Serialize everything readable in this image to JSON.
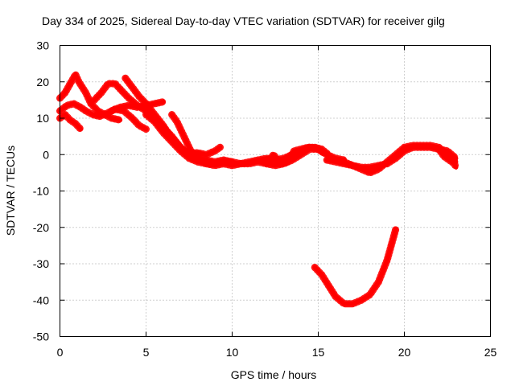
{
  "chart_data": {
    "type": "scatter",
    "title": "Day 334 of 2025, Sidereal Day-to-day VTEC variation (SDTVAR) for receiver gilg",
    "xlabel": "GPS time / hours",
    "ylabel": "SDTVAR / TECUs",
    "xlim": [
      0,
      25
    ],
    "ylim": [
      -50,
      30
    ],
    "xticks": [
      0,
      5,
      10,
      15,
      20,
      25
    ],
    "yticks": [
      -50,
      -40,
      -30,
      -20,
      -10,
      0,
      10,
      20,
      30
    ],
    "grid": true,
    "color": "#ff0000",
    "series": [
      {
        "name": "s1",
        "points": [
          [
            0.0,
            15.5
          ],
          [
            0.3,
            17
          ],
          [
            0.6,
            19.5
          ],
          [
            0.9,
            22
          ],
          [
            1.1,
            20
          ],
          [
            1.5,
            17
          ],
          [
            1.8,
            14
          ],
          [
            2.2,
            12
          ],
          [
            2.6,
            11
          ],
          [
            3.0,
            10
          ],
          [
            3.5,
            9.5
          ]
        ]
      },
      {
        "name": "s2",
        "points": [
          [
            0.0,
            12
          ],
          [
            0.4,
            13.5
          ],
          [
            0.8,
            14
          ],
          [
            1.2,
            13
          ],
          [
            1.5,
            12
          ],
          [
            1.9,
            11
          ],
          [
            2.3,
            10.5
          ],
          [
            2.8,
            11.5
          ],
          [
            3.2,
            12.5
          ],
          [
            3.7,
            12
          ],
          [
            4.2,
            10
          ],
          [
            4.6,
            8
          ],
          [
            5.0,
            7
          ]
        ]
      },
      {
        "name": "s3",
        "points": [
          [
            0.0,
            10
          ],
          [
            0.3,
            11
          ],
          [
            0.6,
            9.5
          ],
          [
            0.9,
            8.5
          ],
          [
            1.2,
            7
          ]
        ]
      },
      {
        "name": "s4",
        "points": [
          [
            2.0,
            15
          ],
          [
            2.4,
            17
          ],
          [
            2.8,
            19.5
          ],
          [
            3.2,
            19.5
          ],
          [
            3.6,
            17.5
          ],
          [
            4.0,
            15.5
          ],
          [
            4.5,
            13.5
          ],
          [
            5.0,
            12
          ],
          [
            5.5,
            10
          ],
          [
            6.0,
            7.5
          ],
          [
            6.5,
            5
          ],
          [
            7.0,
            2
          ],
          [
            7.5,
            0
          ],
          [
            8.0,
            -1
          ],
          [
            8.5,
            -1.5
          ],
          [
            9.0,
            -2
          ],
          [
            9.5,
            -1.5
          ],
          [
            10.0,
            -2
          ]
        ]
      },
      {
        "name": "s5",
        "points": [
          [
            3.8,
            21
          ],
          [
            4.2,
            18.5
          ],
          [
            4.6,
            16
          ],
          [
            5.0,
            14
          ],
          [
            5.5,
            11
          ],
          [
            6.0,
            8
          ],
          [
            6.4,
            5
          ],
          [
            6.8,
            3
          ],
          [
            7.2,
            1
          ],
          [
            7.6,
            0.5
          ],
          [
            8.0,
            0.5
          ],
          [
            8.5,
            0
          ],
          [
            9.0,
            1
          ],
          [
            9.3,
            2
          ]
        ]
      },
      {
        "name": "s6",
        "points": [
          [
            3.0,
            12
          ],
          [
            3.5,
            13
          ],
          [
            4.0,
            13.5
          ],
          [
            4.5,
            13
          ],
          [
            5.0,
            13.5
          ],
          [
            5.5,
            14
          ],
          [
            6.0,
            14.5
          ]
        ]
      },
      {
        "name": "s7",
        "points": [
          [
            6.5,
            11
          ],
          [
            6.8,
            9
          ],
          [
            7.0,
            7
          ],
          [
            7.3,
            4
          ],
          [
            7.6,
            1
          ],
          [
            8.0,
            -1
          ],
          [
            8.5,
            -2.5
          ],
          [
            9.0,
            -3
          ],
          [
            9.5,
            -2.5
          ],
          [
            10.0,
            -3
          ],
          [
            10.5,
            -2.5
          ],
          [
            11.0,
            -2.5
          ],
          [
            11.5,
            -2
          ],
          [
            12.0,
            -2.5
          ],
          [
            12.5,
            -3
          ],
          [
            13.0,
            -2.5
          ],
          [
            13.5,
            -1.5
          ],
          [
            14.0,
            0
          ],
          [
            14.5,
            1.5
          ],
          [
            15.0,
            1.5
          ],
          [
            15.3,
            0.5
          ]
        ]
      },
      {
        "name": "s8",
        "points": [
          [
            5.0,
            11
          ],
          [
            5.5,
            9
          ],
          [
            6.0,
            6
          ],
          [
            6.5,
            3.5
          ],
          [
            7.0,
            1
          ],
          [
            7.5,
            -1
          ],
          [
            8.0,
            -2
          ],
          [
            8.5,
            -2.5
          ],
          [
            9.0,
            -2.5
          ],
          [
            9.5,
            -2
          ],
          [
            10.0,
            -2
          ],
          [
            10.5,
            -2.5
          ],
          [
            11.0,
            -2
          ],
          [
            11.5,
            -1.5
          ],
          [
            12.0,
            -1
          ],
          [
            12.5,
            -1.5
          ],
          [
            13.0,
            -1
          ],
          [
            13.5,
            0
          ],
          [
            14.0,
            1
          ],
          [
            14.5,
            2
          ],
          [
            15.0,
            1.5
          ],
          [
            15.5,
            0
          ],
          [
            16.0,
            -1
          ],
          [
            16.5,
            -1.5
          ]
        ]
      },
      {
        "name": "s9",
        "points": [
          [
            12.0,
            -2.5
          ],
          [
            12.4,
            0
          ],
          [
            12.8,
            -2.5
          ],
          [
            13.2,
            -2
          ],
          [
            13.6,
            1
          ],
          [
            14.0,
            1.5
          ],
          [
            14.4,
            2
          ],
          [
            14.8,
            2
          ],
          [
            15.2,
            1.5
          ],
          [
            15.6,
            0
          ]
        ]
      },
      {
        "name": "s10",
        "points": [
          [
            15.5,
            -1.5
          ],
          [
            16.0,
            -2
          ],
          [
            16.5,
            -2.5
          ],
          [
            17.0,
            -3
          ],
          [
            17.5,
            -3.5
          ],
          [
            18.0,
            -3.5
          ],
          [
            18.5,
            -3
          ],
          [
            19.0,
            -2.5
          ],
          [
            19.5,
            -1
          ],
          [
            20.0,
            1
          ],
          [
            20.5,
            2
          ],
          [
            21.0,
            2
          ],
          [
            21.5,
            2
          ],
          [
            22.0,
            1.5
          ],
          [
            22.5,
            1
          ],
          [
            23.0,
            -1
          ]
        ]
      },
      {
        "name": "s11",
        "points": [
          [
            16.5,
            -2
          ],
          [
            17.0,
            -3
          ],
          [
            17.5,
            -4
          ],
          [
            18.0,
            -5
          ],
          [
            18.5,
            -4
          ],
          [
            19.0,
            -2
          ],
          [
            19.5,
            0
          ],
          [
            20.0,
            2
          ],
          [
            20.5,
            2.5
          ],
          [
            21.0,
            2.5
          ],
          [
            21.5,
            2.5
          ],
          [
            22.0,
            2
          ],
          [
            22.5,
            0
          ],
          [
            23.0,
            -2
          ]
        ]
      },
      {
        "name": "s12",
        "points": [
          [
            22.0,
            1.5
          ],
          [
            22.3,
            -0.5
          ],
          [
            22.6,
            -1.5
          ],
          [
            22.9,
            -2.5
          ],
          [
            23.0,
            -3.5
          ]
        ]
      },
      {
        "name": "s13",
        "points": [
          [
            14.8,
            -31
          ],
          [
            15.2,
            -33
          ],
          [
            15.6,
            -36
          ],
          [
            16.0,
            -39
          ],
          [
            16.5,
            -41
          ],
          [
            17.0,
            -41
          ],
          [
            17.5,
            -40
          ],
          [
            18.0,
            -38.5
          ],
          [
            18.5,
            -35
          ],
          [
            19.0,
            -29
          ],
          [
            19.5,
            -20.5
          ]
        ]
      }
    ]
  }
}
